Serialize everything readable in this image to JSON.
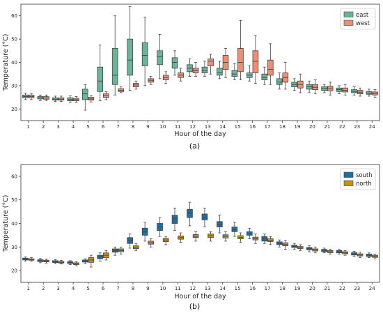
{
  "chart_data": [
    {
      "type": "boxplot",
      "panel_label": "(a)",
      "xlabel": "Hour of the day",
      "ylabel": "Temperature (°C)",
      "ylim": [
        15,
        65
      ],
      "yticks": [
        20,
        30,
        40,
        50,
        60
      ],
      "categories": [
        "1",
        "2",
        "3",
        "4",
        "5",
        "6",
        "7",
        "8",
        "9",
        "10",
        "11",
        "12",
        "13",
        "14",
        "15",
        "16",
        "17",
        "18",
        "19",
        "20",
        "21",
        "22",
        "23",
        "24"
      ],
      "legend_position": "top-right",
      "series": [
        {
          "name": "east",
          "color": "#6ab49a",
          "boxes": [
            {
              "min": 24.0,
              "q1": 24.8,
              "median": 25.3,
              "q3": 26.0,
              "max": 26.8
            },
            {
              "min": 23.6,
              "q1": 24.3,
              "median": 24.8,
              "q3": 25.4,
              "max": 26.0
            },
            {
              "min": 23.2,
              "q1": 23.8,
              "median": 24.2,
              "q3": 24.8,
              "max": 25.5
            },
            {
              "min": 22.8,
              "q1": 23.5,
              "median": 24.0,
              "q3": 24.8,
              "max": 25.6
            },
            {
              "min": 19.5,
              "q1": 24.0,
              "median": 26.5,
              "q3": 28.5,
              "max": 30.5
            },
            {
              "min": 23.5,
              "q1": 27.5,
              "median": 32.0,
              "q3": 38.0,
              "max": 47.5
            },
            {
              "min": 26.0,
              "q1": 30.5,
              "median": 34.5,
              "q3": 46.0,
              "max": 60.0
            },
            {
              "min": 28.0,
              "q1": 34.5,
              "median": 41.0,
              "q3": 50.0,
              "max": 64.0
            },
            {
              "min": 30.0,
              "q1": 38.5,
              "median": 43.0,
              "q3": 48.5,
              "max": 59.5
            },
            {
              "min": 33.0,
              "q1": 39.0,
              "median": 42.5,
              "q3": 45.0,
              "max": 52.0
            },
            {
              "min": 34.5,
              "q1": 37.5,
              "median": 40.0,
              "q3": 42.0,
              "max": 45.0
            },
            {
              "min": 34.0,
              "q1": 36.0,
              "median": 37.5,
              "q3": 39.0,
              "max": 41.5
            },
            {
              "min": 34.0,
              "q1": 35.5,
              "median": 36.5,
              "q3": 38.0,
              "max": 40.5
            },
            {
              "min": 33.0,
              "q1": 34.5,
              "median": 35.5,
              "q3": 37.5,
              "max": 40.5
            },
            {
              "min": 32.5,
              "q1": 34.0,
              "median": 35.0,
              "q3": 36.5,
              "max": 39.5
            },
            {
              "min": 32.0,
              "q1": 33.5,
              "median": 34.5,
              "q3": 35.5,
              "max": 38.5
            },
            {
              "min": 30.5,
              "q1": 32.5,
              "median": 33.5,
              "q3": 35.0,
              "max": 38.0
            },
            {
              "min": 28.5,
              "q1": 30.5,
              "median": 31.5,
              "q3": 33.0,
              "max": 35.5
            },
            {
              "min": 28.0,
              "q1": 29.5,
              "median": 30.5,
              "q3": 31.5,
              "max": 33.0
            },
            {
              "min": 27.0,
              "q1": 28.5,
              "median": 29.5,
              "q3": 30.5,
              "max": 32.0
            },
            {
              "min": 27.0,
              "q1": 28.0,
              "median": 28.8,
              "q3": 29.5,
              "max": 30.5
            },
            {
              "min": 26.5,
              "q1": 27.5,
              "median": 28.3,
              "q3": 29.0,
              "max": 30.0
            },
            {
              "min": 26.0,
              "q1": 27.0,
              "median": 27.5,
              "q3": 28.3,
              "max": 29.5
            },
            {
              "min": 25.5,
              "q1": 26.3,
              "median": 26.8,
              "q3": 27.5,
              "max": 28.5
            }
          ]
        },
        {
          "name": "west",
          "color": "#ee8f71",
          "boxes": [
            {
              "min": 24.0,
              "q1": 24.8,
              "median": 25.3,
              "q3": 26.0,
              "max": 26.8
            },
            {
              "min": 23.6,
              "q1": 24.2,
              "median": 24.7,
              "q3": 25.3,
              "max": 26.0
            },
            {
              "min": 23.2,
              "q1": 23.8,
              "median": 24.2,
              "q3": 24.8,
              "max": 25.5
            },
            {
              "min": 22.8,
              "q1": 23.5,
              "median": 24.0,
              "q3": 24.6,
              "max": 25.3
            },
            {
              "min": 23.0,
              "q1": 23.8,
              "median": 24.3,
              "q3": 25.0,
              "max": 25.8
            },
            {
              "min": 24.0,
              "q1": 25.0,
              "median": 25.7,
              "q3": 26.5,
              "max": 27.5
            },
            {
              "min": 27.0,
              "q1": 27.5,
              "median": 28.0,
              "q3": 28.7,
              "max": 29.5
            },
            {
              "min": 28.5,
              "q1": 29.5,
              "median": 30.3,
              "q3": 31.0,
              "max": 32.0
            },
            {
              "min": 30.5,
              "q1": 31.5,
              "median": 32.3,
              "q3": 33.0,
              "max": 34.0
            },
            {
              "min": 31.0,
              "q1": 32.5,
              "median": 33.5,
              "q3": 34.5,
              "max": 36.0
            },
            {
              "min": 32.0,
              "q1": 33.5,
              "median": 34.5,
              "q3": 35.5,
              "max": 37.5
            },
            {
              "min": 34.0,
              "q1": 35.5,
              "median": 36.5,
              "q3": 37.5,
              "max": 40.0
            },
            {
              "min": 35.0,
              "q1": 38.5,
              "median": 40.5,
              "q3": 41.5,
              "max": 43.5
            },
            {
              "min": 33.5,
              "q1": 37.0,
              "median": 40.0,
              "q3": 43.0,
              "max": 46.0
            },
            {
              "min": 32.5,
              "q1": 36.0,
              "median": 40.0,
              "q3": 46.0,
              "max": 58.0
            },
            {
              "min": 31.0,
              "q1": 35.5,
              "median": 40.5,
              "q3": 45.0,
              "max": 51.5
            },
            {
              "min": 30.5,
              "q1": 34.5,
              "median": 37.0,
              "q3": 41.0,
              "max": 48.0
            },
            {
              "min": 28.5,
              "q1": 31.5,
              "median": 33.5,
              "q3": 35.5,
              "max": 40.0
            },
            {
              "min": 27.0,
              "q1": 29.0,
              "median": 30.5,
              "q3": 32.0,
              "max": 35.0
            },
            {
              "min": 26.5,
              "q1": 28.3,
              "median": 29.3,
              "q3": 30.5,
              "max": 32.5
            },
            {
              "min": 26.0,
              "q1": 27.8,
              "median": 28.7,
              "q3": 29.8,
              "max": 31.5
            },
            {
              "min": 26.0,
              "q1": 27.3,
              "median": 28.0,
              "q3": 29.0,
              "max": 30.5
            },
            {
              "min": 25.5,
              "q1": 26.5,
              "median": 27.2,
              "q3": 28.0,
              "max": 29.0
            },
            {
              "min": 25.0,
              "q1": 26.0,
              "median": 26.6,
              "q3": 27.3,
              "max": 28.3
            }
          ]
        }
      ]
    },
    {
      "type": "boxplot",
      "panel_label": "(b)",
      "xlabel": "Hour of the day",
      "ylabel": "Temperature (°C)",
      "ylim": [
        15,
        65
      ],
      "yticks": [
        20,
        30,
        40,
        50,
        60
      ],
      "categories": [
        "1",
        "2",
        "3",
        "4",
        "5",
        "6",
        "7",
        "8",
        "9",
        "10",
        "11",
        "12",
        "13",
        "14",
        "15",
        "16",
        "17",
        "18",
        "19",
        "20",
        "21",
        "22",
        "23",
        "24"
      ],
      "legend_position": "top-right",
      "series": [
        {
          "name": "south",
          "color": "#1f6fa3",
          "boxes": [
            {
              "min": 24.0,
              "q1": 24.5,
              "median": 24.8,
              "q3": 25.3,
              "max": 25.8
            },
            {
              "min": 23.3,
              "q1": 23.8,
              "median": 24.2,
              "q3": 24.6,
              "max": 25.1
            },
            {
              "min": 23.0,
              "q1": 23.4,
              "median": 23.8,
              "q3": 24.2,
              "max": 24.6
            },
            {
              "min": 22.5,
              "q1": 23.0,
              "median": 23.4,
              "q3": 23.8,
              "max": 24.2
            },
            {
              "min": 23.0,
              "q1": 23.6,
              "median": 24.0,
              "q3": 24.5,
              "max": 25.0
            },
            {
              "min": 24.0,
              "q1": 25.0,
              "median": 25.8,
              "q3": 26.5,
              "max": 27.5
            },
            {
              "min": 26.5,
              "q1": 27.8,
              "median": 28.5,
              "q3": 29.2,
              "max": 30.0
            },
            {
              "min": 29.5,
              "q1": 31.5,
              "median": 32.8,
              "q3": 34.0,
              "max": 35.5
            },
            {
              "min": 32.5,
              "q1": 35.0,
              "median": 36.5,
              "q3": 38.0,
              "max": 40.5
            },
            {
              "min": 34.5,
              "q1": 37.0,
              "median": 38.5,
              "q3": 40.0,
              "max": 42.5
            },
            {
              "min": 37.0,
              "q1": 40.0,
              "median": 42.0,
              "q3": 43.5,
              "max": 46.5
            },
            {
              "min": 39.0,
              "q1": 42.5,
              "median": 44.5,
              "q3": 46.0,
              "max": 49.0
            },
            {
              "min": 38.5,
              "q1": 41.5,
              "median": 42.5,
              "q3": 44.0,
              "max": 46.5
            },
            {
              "min": 36.0,
              "q1": 38.5,
              "median": 39.5,
              "q3": 40.8,
              "max": 43.5
            },
            {
              "min": 34.5,
              "q1": 36.5,
              "median": 37.3,
              "q3": 38.5,
              "max": 40.5
            },
            {
              "min": 33.5,
              "q1": 35.0,
              "median": 35.5,
              "q3": 36.5,
              "max": 38.0
            },
            {
              "min": 31.5,
              "q1": 32.5,
              "median": 33.5,
              "q3": 34.5,
              "max": 35.5
            },
            {
              "min": 30.0,
              "q1": 31.0,
              "median": 31.5,
              "q3": 32.2,
              "max": 33.0
            },
            {
              "min": 29.0,
              "q1": 29.8,
              "median": 30.3,
              "q3": 30.8,
              "max": 31.5
            },
            {
              "min": 28.0,
              "q1": 28.8,
              "median": 29.3,
              "q3": 29.8,
              "max": 30.5
            },
            {
              "min": 27.5,
              "q1": 28.0,
              "median": 28.5,
              "q3": 29.0,
              "max": 29.5
            },
            {
              "min": 27.0,
              "q1": 27.5,
              "median": 28.0,
              "q3": 28.5,
              "max": 29.0
            },
            {
              "min": 26.0,
              "q1": 26.6,
              "median": 27.1,
              "q3": 27.6,
              "max": 28.2
            },
            {
              "min": 25.5,
              "q1": 26.0,
              "median": 26.5,
              "q3": 27.0,
              "max": 27.5
            }
          ]
        },
        {
          "name": "north",
          "color": "#c5901a",
          "boxes": [
            {
              "min": 24.0,
              "q1": 24.4,
              "median": 24.7,
              "q3": 25.0,
              "max": 25.5
            },
            {
              "min": 23.2,
              "q1": 23.7,
              "median": 24.0,
              "q3": 24.4,
              "max": 24.8
            },
            {
              "min": 22.8,
              "q1": 23.2,
              "median": 23.5,
              "q3": 23.9,
              "max": 24.3
            },
            {
              "min": 22.0,
              "q1": 22.5,
              "median": 22.9,
              "q3": 23.3,
              "max": 23.8
            },
            {
              "min": 21.5,
              "q1": 23.5,
              "median": 24.5,
              "q3": 25.5,
              "max": 26.5
            },
            {
              "min": 24.5,
              "q1": 25.5,
              "median": 26.5,
              "q3": 27.5,
              "max": 28.5
            },
            {
              "min": 27.0,
              "q1": 28.0,
              "median": 28.5,
              "q3": 29.2,
              "max": 30.0
            },
            {
              "min": 28.5,
              "q1": 29.3,
              "median": 30.0,
              "q3": 30.5,
              "max": 31.5
            },
            {
              "min": 30.0,
              "q1": 31.2,
              "median": 31.8,
              "q3": 32.5,
              "max": 33.5
            },
            {
              "min": 31.0,
              "q1": 32.3,
              "median": 33.0,
              "q3": 33.7,
              "max": 34.5
            },
            {
              "min": 32.0,
              "q1": 33.3,
              "median": 34.0,
              "q3": 34.7,
              "max": 36.0
            },
            {
              "min": 32.5,
              "q1": 34.0,
              "median": 34.5,
              "q3": 35.3,
              "max": 36.5
            },
            {
              "min": 32.5,
              "q1": 34.0,
              "median": 34.8,
              "q3": 35.5,
              "max": 36.5
            },
            {
              "min": 32.5,
              "q1": 33.8,
              "median": 34.5,
              "q3": 35.2,
              "max": 36.5
            },
            {
              "min": 32.0,
              "q1": 33.5,
              "median": 34.0,
              "q3": 34.8,
              "max": 36.0
            },
            {
              "min": 31.5,
              "q1": 33.0,
              "median": 33.5,
              "q3": 34.2,
              "max": 35.5
            },
            {
              "min": 31.0,
              "q1": 32.3,
              "median": 32.8,
              "q3": 33.5,
              "max": 34.5
            },
            {
              "min": 29.0,
              "q1": 30.5,
              "median": 31.0,
              "q3": 31.8,
              "max": 32.8
            },
            {
              "min": 28.5,
              "q1": 29.3,
              "median": 29.7,
              "q3": 30.2,
              "max": 31.0
            },
            {
              "min": 27.5,
              "q1": 28.3,
              "median": 28.8,
              "q3": 29.2,
              "max": 30.0
            },
            {
              "min": 27.0,
              "q1": 27.6,
              "median": 28.0,
              "q3": 28.5,
              "max": 29.0
            },
            {
              "min": 26.5,
              "q1": 27.1,
              "median": 27.5,
              "q3": 28.0,
              "max": 28.5
            },
            {
              "min": 25.5,
              "q1": 26.2,
              "median": 26.6,
              "q3": 27.1,
              "max": 27.8
            },
            {
              "min": 25.0,
              "q1": 25.6,
              "median": 26.0,
              "q3": 26.5,
              "max": 27.0
            }
          ]
        }
      ]
    }
  ]
}
